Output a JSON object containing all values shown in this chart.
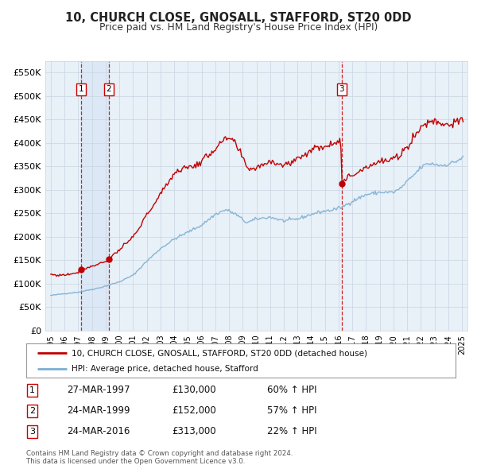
{
  "title": "10, CHURCH CLOSE, GNOSALL, STAFFORD, ST20 0DD",
  "subtitle": "Price paid vs. HM Land Registry's House Price Index (HPI)",
  "legend_line1": "10, CHURCH CLOSE, GNOSALL, STAFFORD, ST20 0DD (detached house)",
  "legend_line2": "HPI: Average price, detached house, Stafford",
  "footer1": "Contains HM Land Registry data © Crown copyright and database right 2024.",
  "footer2": "This data is licensed under the Open Government Licence v3.0.",
  "transactions": [
    {
      "num": 1,
      "date": "27-MAR-1997",
      "price": 130000,
      "price_str": "£130,000",
      "pct": "60%",
      "dir": "↑",
      "x_year": 1997.23,
      "dot_y": 130000
    },
    {
      "num": 2,
      "date": "24-MAR-1999",
      "price": 152000,
      "price_str": "£152,000",
      "pct": "57%",
      "dir": "↑",
      "x_year": 1999.23,
      "dot_y": 152000
    },
    {
      "num": 3,
      "date": "24-MAR-2016",
      "price": 313000,
      "price_str": "£313,000",
      "pct": "22%",
      "dir": "↑",
      "x_year": 2016.23,
      "dot_y": 313000
    }
  ],
  "property_color": "#c00000",
  "hpi_color": "#7bafd4",
  "dot_color": "#c00000",
  "vline_color": "#cc0000",
  "shade_color": "#dce8f5",
  "background_color": "#e8f0f8",
  "grid_color": "#c8d4e0",
  "ylim": [
    0,
    575000
  ],
  "yticks": [
    0,
    50000,
    100000,
    150000,
    200000,
    250000,
    300000,
    350000,
    400000,
    450000,
    500000,
    550000
  ],
  "ytick_labels": [
    "£0",
    "£50K",
    "£100K",
    "£150K",
    "£200K",
    "£250K",
    "£300K",
    "£350K",
    "£400K",
    "£450K",
    "£500K",
    "£550K"
  ],
  "xlim_start": 1994.6,
  "xlim_end": 2025.4
}
